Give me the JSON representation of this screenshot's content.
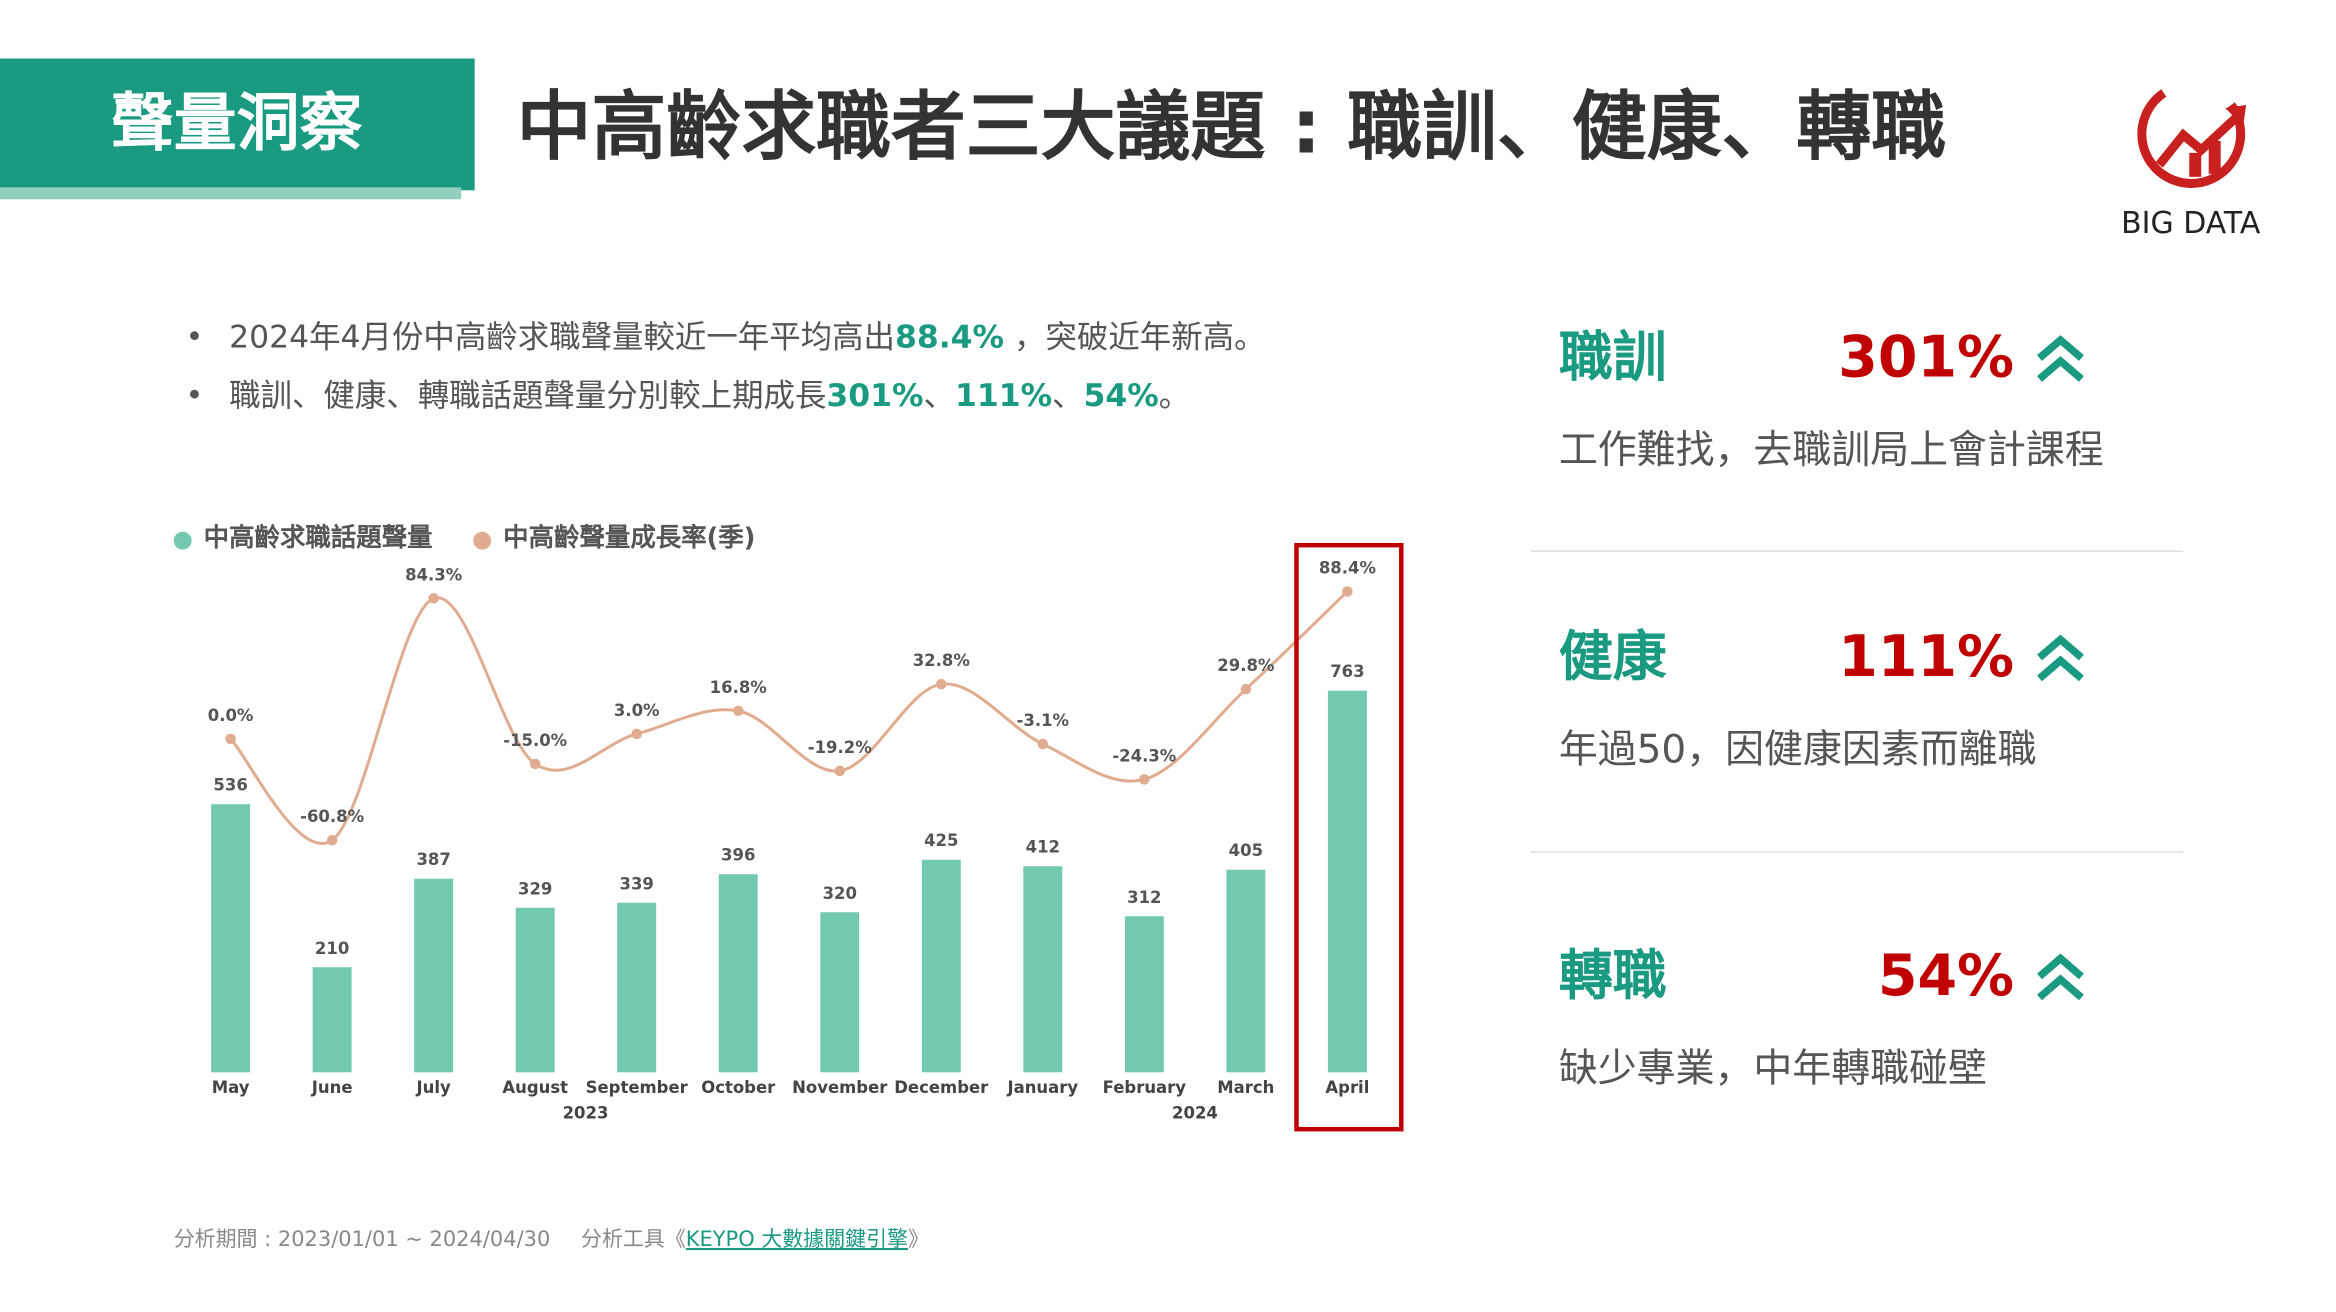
{
  "header": {
    "tag": "聲量洞察",
    "title": "中高齡求職者三大議題 : 職訓、健康、轉職",
    "logo_text": "BIG DATA"
  },
  "bullets": [
    [
      "2024年4月份中高齡求職聲量較近一年平均高出",
      "88.4%",
      " ，突破近年新高。"
    ],
    [
      "職訓、健康、轉職話題聲量分別較上期成長",
      "301%",
      "、",
      "111%",
      "、",
      "54%",
      "。"
    ]
  ],
  "chart_data": {
    "type": "bar-line",
    "categories": [
      "May",
      "June",
      "July",
      "August",
      "September",
      "October",
      "November",
      "December",
      "January",
      "February",
      "March",
      "April"
    ],
    "year_labels": [
      "2023",
      "2024"
    ],
    "series": [
      {
        "name": "中高齡求職話題聲量",
        "type": "bar",
        "color": "#72c9b0",
        "values": [
          536,
          210,
          387,
          329,
          339,
          396,
          320,
          425,
          412,
          312,
          405,
          763
        ]
      },
      {
        "name": "中高齡聲量成長率(季)",
        "type": "line",
        "axis": "y2",
        "color": "#e0ab8e",
        "values": [
          0.0,
          -60.8,
          84.3,
          -15.0,
          3.0,
          16.8,
          -19.2,
          32.8,
          -3.1,
          -24.3,
          29.8,
          88.4
        ],
        "value_labels": [
          "0.0%",
          "-60.8%",
          "84.3%",
          "-15.0%",
          "3.0%",
          "16.8%",
          "-19.2%",
          "32.8%",
          "-3.1%",
          "-24.3%",
          "29.8%",
          "88.4%"
        ]
      }
    ],
    "ylim": [
      0,
      1000
    ],
    "y2lim": [
      -200,
      100
    ],
    "highlight_color": "#c00000"
  },
  "topics": [
    {
      "label": "職訓",
      "value": "301%",
      "desc": "工作難找，去職訓局上會計課程"
    },
    {
      "label": "健康",
      "value": "111%",
      "desc": "年過50，因健康因素而離職"
    },
    {
      "label": "轉職",
      "value": "54%",
      "desc": "缺少專業，中年轉職碰壁"
    }
  ],
  "footer": {
    "period": "分析期間 : 2023/01/01 ~ 2024/04/30",
    "tool_prefix": "分析工具《",
    "tool_link": "KEYPO 大數據關鍵引擎",
    "tool_suffix": "》"
  }
}
